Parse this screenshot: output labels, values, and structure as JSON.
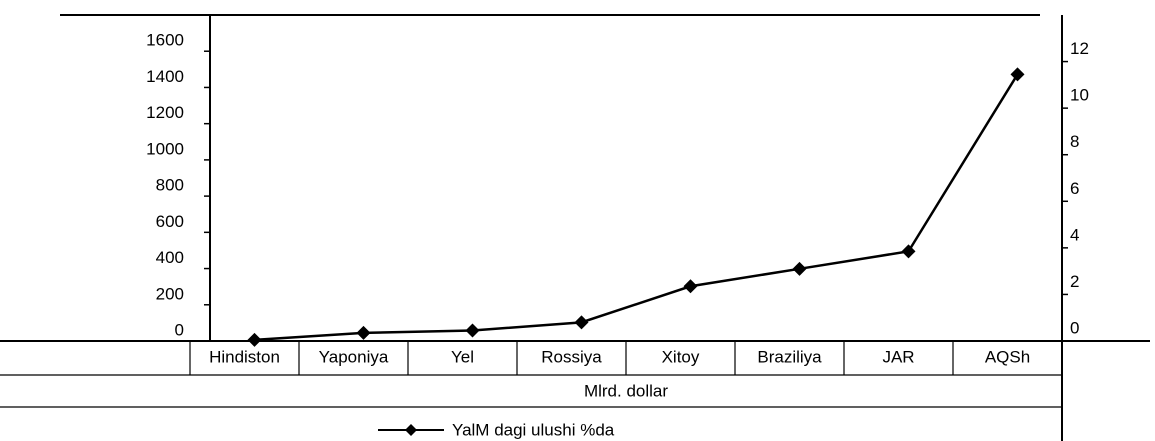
{
  "chart_data": {
    "type": "line",
    "categories": [
      "Hindiston",
      "Yaponiya",
      "Yel",
      "Rossiya",
      "Xitoy",
      "Braziliya",
      "JAR",
      "AQSh"
    ],
    "series": [
      {
        "name": "YalM dagi ulushi %da",
        "color": "#000000",
        "axis": "y2",
        "values": [
          0.05,
          0.35,
          0.45,
          0.8,
          2.35,
          3.1,
          3.85,
          11.45
        ]
      }
    ],
    "ylim": [
      0,
      1800
    ],
    "yticks": [
      0,
      200,
      400,
      600,
      800,
      1000,
      1200,
      1400,
      1600
    ],
    "y2lim": [
      0,
      14
    ],
    "y2ticks": [
      0,
      2,
      4,
      6,
      8,
      10,
      12
    ],
    "table_label": "Mlrd. dollar"
  }
}
